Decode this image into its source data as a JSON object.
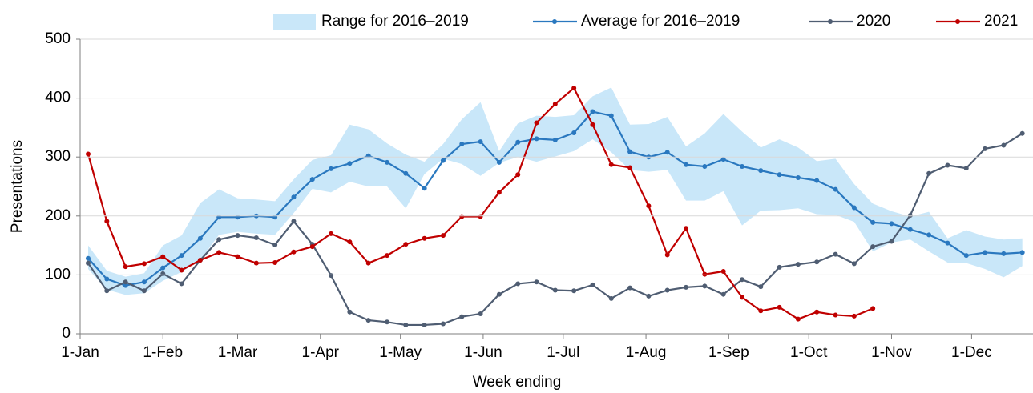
{
  "chart_data": {
    "type": "line",
    "xlabel": "Week ending",
    "ylabel": "Presentations",
    "xlim": [
      0,
      357
    ],
    "ylim": [
      0,
      500
    ],
    "yticks": [
      0,
      100,
      200,
      300,
      400,
      500
    ],
    "xticks": [
      {
        "value": 0,
        "label": "1-Jan"
      },
      {
        "value": 31,
        "label": "1-Feb"
      },
      {
        "value": 59,
        "label": "1-Mar"
      },
      {
        "value": 90,
        "label": "1-Apr"
      },
      {
        "value": 120,
        "label": "1-May"
      },
      {
        "value": 151,
        "label": "1-Jun"
      },
      {
        "value": 181,
        "label": "1-Jul"
      },
      {
        "value": 212,
        "label": "1-Aug"
      },
      {
        "value": 243,
        "label": "1-Sep"
      },
      {
        "value": 273,
        "label": "1-Oct"
      },
      {
        "value": 304,
        "label": "1-Nov"
      },
      {
        "value": 334,
        "label": "1-Dec"
      }
    ],
    "grid": true,
    "legend": "top",
    "x": [
      3,
      10,
      17,
      24,
      31,
      38,
      45,
      52,
      59,
      66,
      73,
      80,
      87,
      94,
      101,
      108,
      115,
      122,
      129,
      136,
      143,
      150,
      157,
      164,
      171,
      178,
      185,
      192,
      199,
      206,
      213,
      220,
      227,
      234,
      241,
      248,
      255,
      262,
      269,
      276,
      283,
      290,
      297,
      304,
      311,
      318,
      325,
      332,
      339,
      346,
      353
    ],
    "range": {
      "name": "Range for 2016–2019",
      "color": "#c9e7f9",
      "upper": [
        150,
        107,
        97,
        103,
        150,
        167,
        222,
        245,
        230,
        228,
        225,
        262,
        295,
        303,
        355,
        347,
        323,
        304,
        292,
        322,
        364,
        393,
        310,
        357,
        370,
        368,
        371,
        403,
        418,
        355,
        356,
        368,
        318,
        340,
        373,
        343,
        316,
        330,
        316,
        293,
        297,
        254,
        221,
        208,
        199,
        207,
        162,
        176,
        165,
        160,
        162
      ],
      "lower": [
        110,
        75,
        66,
        69,
        90,
        105,
        125,
        168,
        173,
        170,
        168,
        205,
        246,
        240,
        258,
        250,
        250,
        213,
        271,
        297,
        288,
        268,
        290,
        300,
        292,
        301,
        310,
        330,
        308,
        278,
        275,
        278,
        226,
        226,
        242,
        184,
        209,
        210,
        213,
        203,
        202,
        190,
        140,
        155,
        160,
        140,
        121,
        120,
        110,
        96,
        115
      ]
    },
    "series": [
      {
        "name": "Average for 2016–2019",
        "color": "#2a78bf",
        "values": [
          128,
          93,
          82,
          88,
          112,
          133,
          162,
          198,
          198,
          200,
          198,
          232,
          262,
          280,
          289,
          302,
          291,
          272,
          247,
          294,
          322,
          326,
          291,
          325,
          331,
          329,
          341,
          377,
          370,
          309,
          300,
          308,
          287,
          284,
          296,
          284,
          277,
          270,
          265,
          260,
          245,
          214,
          189,
          187,
          177,
          168,
          154,
          133,
          138,
          136,
          138
        ]
      },
      {
        "name": "2020",
        "color": "#4f5d72",
        "values": [
          120,
          73,
          88,
          73,
          102,
          85,
          125,
          160,
          167,
          163,
          151,
          191,
          152,
          99,
          37,
          23,
          20,
          15,
          15,
          17,
          29,
          34,
          67,
          85,
          88,
          74,
          73,
          83,
          60,
          78,
          64,
          74,
          79,
          81,
          67,
          92,
          80,
          113,
          118,
          122,
          135,
          119,
          148,
          157,
          201,
          272,
          286,
          281,
          314,
          320,
          340
        ]
      },
      {
        "name": "2021",
        "color": "#c00000",
        "values": [
          305,
          191,
          114,
          119,
          131,
          108,
          125,
          138,
          131,
          120,
          121,
          139,
          148,
          170,
          156,
          120,
          133,
          152,
          162,
          167,
          199,
          199,
          240,
          270,
          358,
          390,
          417,
          355,
          287,
          282,
          217,
          134,
          179,
          101,
          106,
          62,
          39,
          45,
          25,
          37,
          32,
          30,
          43,
          null,
          null,
          null,
          null,
          null,
          null,
          null,
          null
        ]
      }
    ]
  }
}
